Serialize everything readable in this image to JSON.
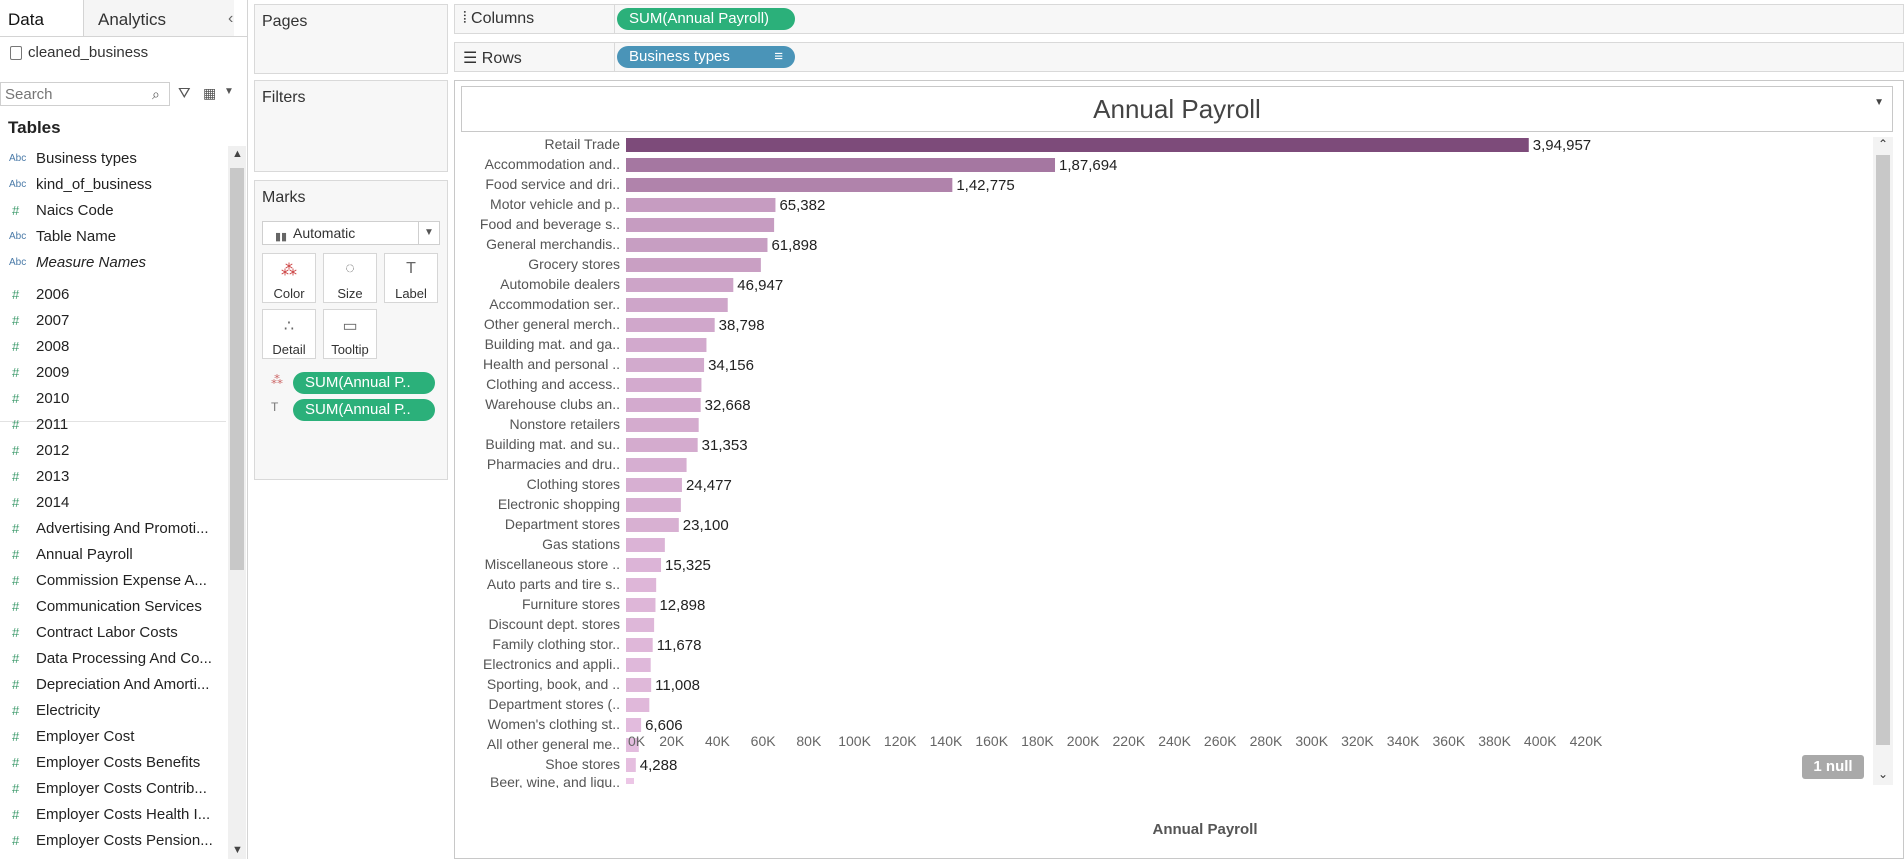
{
  "tabs": {
    "data": "Data",
    "analytics": "Analytics"
  },
  "datasource": "cleaned_business",
  "search": {
    "placeholder": "Search"
  },
  "tables_heading": "Tables",
  "fields": [
    {
      "type": "Abc",
      "label": "Business types"
    },
    {
      "type": "Abc",
      "label": "kind_of_business"
    },
    {
      "type": "#",
      "label": "Naics Code"
    },
    {
      "type": "Abc",
      "label": "Table Name"
    },
    {
      "type": "Abc",
      "label": "Measure Names",
      "italic": true
    },
    {
      "type": "#",
      "label": "2006"
    },
    {
      "type": "#",
      "label": "2007"
    },
    {
      "type": "#",
      "label": "2008"
    },
    {
      "type": "#",
      "label": "2009"
    },
    {
      "type": "#",
      "label": "2010"
    },
    {
      "type": "#",
      "label": "2011"
    },
    {
      "type": "#",
      "label": "2012"
    },
    {
      "type": "#",
      "label": "2013"
    },
    {
      "type": "#",
      "label": "2014"
    },
    {
      "type": "#",
      "label": "Advertising And Promoti..."
    },
    {
      "type": "#",
      "label": "Annual Payroll"
    },
    {
      "type": "#",
      "label": "Commission Expense A..."
    },
    {
      "type": "#",
      "label": "Communication Services"
    },
    {
      "type": "#",
      "label": "Contract Labor Costs"
    },
    {
      "type": "#",
      "label": "Data Processing And Co..."
    },
    {
      "type": "#",
      "label": "Depreciation And Amorti..."
    },
    {
      "type": "#",
      "label": "Electricity"
    },
    {
      "type": "#",
      "label": "Employer Cost"
    },
    {
      "type": "#",
      "label": "Employer Costs Benefits"
    },
    {
      "type": "#",
      "label": "Employer Costs Contrib..."
    },
    {
      "type": "#",
      "label": "Employer Costs Health I..."
    },
    {
      "type": "#",
      "label": "Employer Costs Pension..."
    }
  ],
  "shelves": {
    "pages": "Pages",
    "filters": "Filters",
    "marks": "Marks",
    "columns": "Columns",
    "rows": "Rows",
    "columns_pill": "SUM(Annual Payroll)",
    "rows_pill": "Business types"
  },
  "marks": {
    "type": "Automatic",
    "buttons": {
      "color": "Color",
      "size": "Size",
      "label": "Label",
      "detail": "Detail",
      "tooltip": "Tooltip"
    },
    "pills": [
      "SUM(Annual P..",
      "SUM(Annual P.."
    ]
  },
  "null_badge": "1 null",
  "colors": {
    "accent_green": "#2bb07a",
    "rows_blue": "#4a94b8",
    "bar_max": "#7d4b7a",
    "bar_min": "#ecc6e6"
  },
  "chart_data": {
    "type": "bar",
    "orientation": "horizontal",
    "title": "Annual Payroll",
    "xlabel": "Annual Payroll",
    "xlim": [
      0,
      420000
    ],
    "x_ticks": [
      "0K",
      "20K",
      "40K",
      "60K",
      "80K",
      "100K",
      "120K",
      "140K",
      "160K",
      "180K",
      "200K",
      "220K",
      "240K",
      "260K",
      "280K",
      "300K",
      "320K",
      "340K",
      "360K",
      "380K",
      "400K",
      "420K"
    ],
    "categories": [
      "Retail Trade",
      "Accommodation and..",
      "Food service and dri..",
      "Motor vehicle and p..",
      "Food and beverage s..",
      "General merchandis..",
      "Grocery stores",
      "Automobile dealers",
      "Accommodation ser..",
      "Other general merch..",
      "Building mat. and ga..",
      "Health and personal ..",
      "Clothing and access..",
      "Warehouse clubs an..",
      "Nonstore retailers",
      "Building mat. and su..",
      "Pharmacies and dru..",
      "Clothing stores",
      "Electronic shopping",
      "Department stores",
      "Gas stations",
      "Miscellaneous store ..",
      "Auto parts and tire s..",
      "Furniture stores",
      "Discount dept. stores",
      "Family clothing stor..",
      "Electronics and appli..",
      "Sporting, book, and ..",
      "Department stores (..",
      "Women's clothing st..",
      "All other general me..",
      "Shoe stores"
    ],
    "values": [
      394957,
      187694,
      142775,
      65382,
      64800,
      61898,
      59000,
      46947,
      44500,
      38798,
      35200,
      34156,
      33000,
      32668,
      31800,
      31353,
      26500,
      24477,
      24000,
      23100,
      17000,
      15325,
      13200,
      12898,
      12300,
      11678,
      10800,
      11008,
      10200,
      6606,
      5600,
      4288
    ],
    "data_labels": [
      "3,94,957",
      "1,87,694",
      "1,42,775",
      "65,382",
      "",
      "61,898",
      "",
      "46,947",
      "",
      "38,798",
      "",
      "34,156",
      "",
      "32,668",
      "",
      "31,353",
      "",
      "24,477",
      "",
      "23,100",
      "",
      "15,325",
      "",
      "12,898",
      "",
      "11,678",
      "",
      "11,008",
      "",
      "6,606",
      "",
      "4,288"
    ],
    "partial_last_row": "Beer, wine, and liqu.."
  }
}
